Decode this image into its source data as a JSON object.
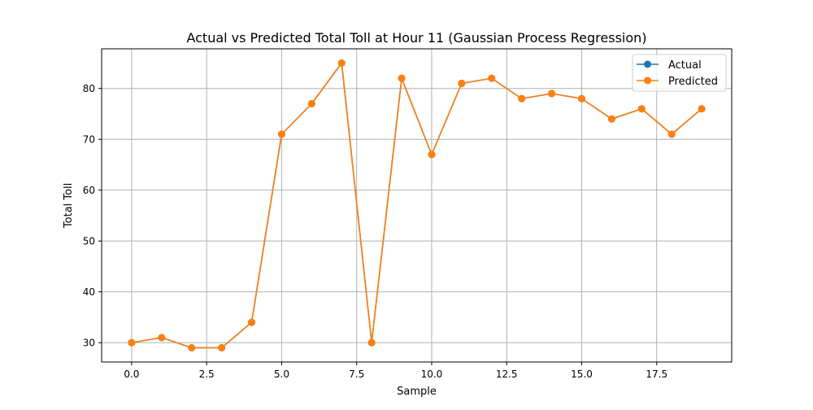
{
  "chart_data": {
    "type": "line",
    "title": "Actual vs Predicted Total Toll at Hour 11 (Gaussian Process Regression)",
    "xlabel": "Sample",
    "ylabel": "Total Toll",
    "xlim": [
      -1,
      20
    ],
    "ylim": [
      26.2,
      87.8
    ],
    "grid": true,
    "legend_position": "top-right",
    "x_ticks": [
      0,
      2.5,
      5,
      7.5,
      10,
      12.5,
      15,
      17.5
    ],
    "x_tick_labels": [
      "0.0",
      "2.5",
      "5.0",
      "7.5",
      "10.0",
      "12.5",
      "15.0",
      "17.5"
    ],
    "y_ticks": [
      30,
      40,
      50,
      60,
      70,
      80
    ],
    "y_tick_labels": [
      "30",
      "40",
      "50",
      "60",
      "70",
      "80"
    ],
    "x": [
      0,
      1,
      2,
      3,
      4,
      5,
      6,
      7,
      8,
      9,
      10,
      11,
      12,
      13,
      14,
      15,
      16,
      17,
      18,
      19
    ],
    "series": [
      {
        "name": "Actual",
        "color": "#1f77b4",
        "marker": "circle",
        "values": [
          30,
          31,
          29,
          29,
          34,
          71,
          77,
          85,
          30,
          82,
          67,
          81,
          82,
          78,
          79,
          78,
          74,
          76,
          71,
          76
        ]
      },
      {
        "name": "Predicted",
        "color": "#ff7f0e",
        "marker": "circle",
        "values": [
          30,
          31,
          29,
          29,
          34,
          71,
          77,
          85,
          30,
          82,
          67,
          81,
          82,
          78,
          79,
          78,
          74,
          76,
          71,
          76
        ]
      }
    ]
  }
}
